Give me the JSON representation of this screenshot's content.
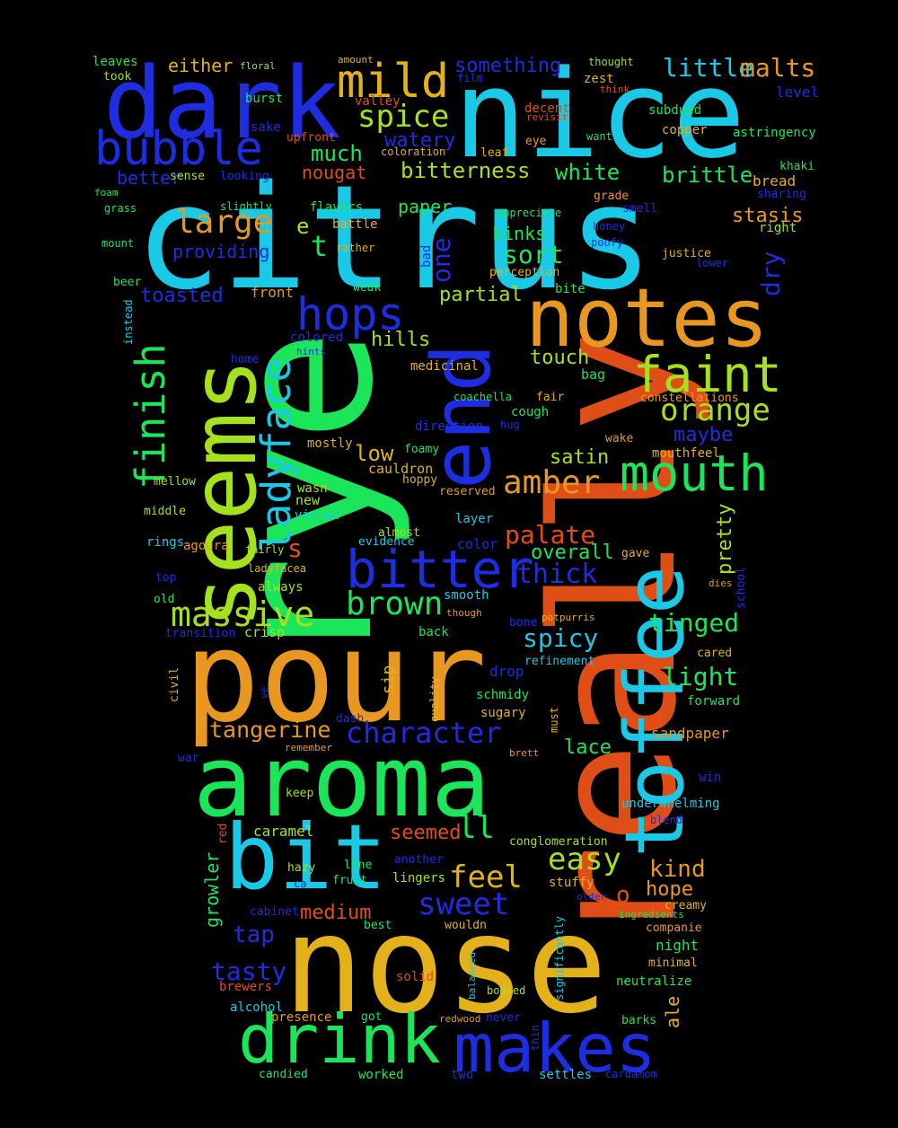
{
  "colors": {
    "background": "#000000",
    "blue": "#1e2de0",
    "cyan": "#19c9e6",
    "green": "#1be65a",
    "lime": "#a6e11f",
    "orange": "#e89821",
    "red": "#e04e17",
    "yellow": "#e3b21a"
  },
  "words": [
    {
      "t": "citrus"
    },
    {
      "t": "rye"
    },
    {
      "t": "really"
    },
    {
      "t": "nose"
    },
    {
      "t": "nice"
    },
    {
      "t": "pour"
    },
    {
      "t": "dark"
    },
    {
      "t": "aroma"
    },
    {
      "t": "notes"
    },
    {
      "t": "seems"
    },
    {
      "t": "end"
    },
    {
      "t": "toffee"
    },
    {
      "t": "bit"
    },
    {
      "t": "drink"
    },
    {
      "t": "makes"
    },
    {
      "t": "bubble"
    },
    {
      "t": "bitter"
    },
    {
      "t": "mild"
    },
    {
      "t": "hops"
    },
    {
      "t": "faint"
    },
    {
      "t": "mouth"
    },
    {
      "t": "ladyface"
    },
    {
      "t": "finish"
    },
    {
      "t": "massive"
    },
    {
      "t": "character"
    },
    {
      "t": "large"
    },
    {
      "t": "orange"
    },
    {
      "t": "brown"
    },
    {
      "t": "amber"
    },
    {
      "t": "sweet"
    },
    {
      "t": "feel"
    },
    {
      "t": "easy"
    },
    {
      "t": "spice"
    },
    {
      "t": "tangerine"
    },
    {
      "t": "thick"
    },
    {
      "t": "ll"
    },
    {
      "t": "one"
    },
    {
      "t": "tasty"
    },
    {
      "t": "tinged"
    },
    {
      "t": "light"
    },
    {
      "t": "spicy"
    },
    {
      "t": "palate"
    },
    {
      "t": "sort"
    },
    {
      "t": "little"
    },
    {
      "t": "malts"
    },
    {
      "t": "something"
    },
    {
      "t": "bitterness"
    },
    {
      "t": "white"
    },
    {
      "t": "much"
    },
    {
      "t": "watery"
    },
    {
      "t": "brittle"
    },
    {
      "t": "toasted"
    },
    {
      "t": "providing"
    },
    {
      "t": "kinks"
    },
    {
      "t": "partial"
    },
    {
      "t": "touch"
    },
    {
      "t": "low"
    },
    {
      "t": "hills"
    },
    {
      "t": "dry"
    },
    {
      "t": "stasis"
    },
    {
      "t": "kind"
    },
    {
      "t": "hope"
    },
    {
      "t": "tap"
    },
    {
      "t": "medium"
    },
    {
      "t": "seemed"
    },
    {
      "t": "overall"
    },
    {
      "t": "pretty"
    },
    {
      "t": "satin"
    },
    {
      "t": "maybe"
    },
    {
      "t": "either"
    },
    {
      "t": "better"
    },
    {
      "t": "paper"
    },
    {
      "t": "nougat"
    },
    {
      "t": "lace"
    },
    {
      "t": "t"
    },
    {
      "t": "s"
    },
    {
      "t": "o"
    },
    {
      "t": "growler"
    },
    {
      "t": "ale"
    },
    {
      "t": "front"
    },
    {
      "t": "sip"
    },
    {
      "t": "bread"
    },
    {
      "t": "caramel"
    },
    {
      "t": "drop"
    },
    {
      "t": "sandpaper"
    },
    {
      "t": "level"
    },
    {
      "t": "subdued"
    },
    {
      "t": "astringency"
    },
    {
      "t": "copper"
    },
    {
      "t": "khaki"
    },
    {
      "t": "sharing"
    },
    {
      "t": "right"
    },
    {
      "t": "justice"
    },
    {
      "t": "lower"
    },
    {
      "t": "smell"
    },
    {
      "t": "honey"
    },
    {
      "t": "poofy"
    },
    {
      "t": "grade"
    },
    {
      "t": "appreciate"
    },
    {
      "t": "leaf"
    },
    {
      "t": "eye"
    },
    {
      "t": "want"
    },
    {
      "t": "zest"
    },
    {
      "t": "think"
    },
    {
      "t": "thought"
    },
    {
      "t": "film"
    },
    {
      "t": "amount"
    },
    {
      "t": "valley"
    },
    {
      "t": "decent"
    },
    {
      "t": "revisit"
    },
    {
      "t": "coloration"
    },
    {
      "t": "upfront"
    },
    {
      "t": "burst"
    },
    {
      "t": "took"
    },
    {
      "t": "leaves"
    },
    {
      "t": "floral"
    },
    {
      "t": "sake"
    },
    {
      "t": "sense"
    },
    {
      "t": "looking"
    },
    {
      "t": "foam"
    },
    {
      "t": "grass"
    },
    {
      "t": "slightly"
    },
    {
      "t": "flavors"
    },
    {
      "t": "battle"
    },
    {
      "t": "mount"
    },
    {
      "t": "rather"
    },
    {
      "t": "bad"
    },
    {
      "t": "beer"
    },
    {
      "t": "weak"
    },
    {
      "t": "perception"
    },
    {
      "t": "bite"
    },
    {
      "t": "instead"
    },
    {
      "t": "colored"
    },
    {
      "t": "hints"
    },
    {
      "t": "home"
    },
    {
      "t": "medicinal"
    },
    {
      "t": "bag"
    },
    {
      "t": "coachella"
    },
    {
      "t": "fair"
    },
    {
      "t": "cough"
    },
    {
      "t": "hug"
    },
    {
      "t": "constellations"
    },
    {
      "t": "wake"
    },
    {
      "t": "mouthfeel"
    },
    {
      "t": "direction"
    },
    {
      "t": "foamy"
    },
    {
      "t": "mostly"
    },
    {
      "t": "cauldron"
    },
    {
      "t": "hoppy"
    },
    {
      "t": "reserved"
    },
    {
      "t": "mellow"
    },
    {
      "t": "wasn"
    },
    {
      "t": "new"
    },
    {
      "t": "visual"
    },
    {
      "t": "middle"
    },
    {
      "t": "layer"
    },
    {
      "t": "almost"
    },
    {
      "t": "evidence"
    },
    {
      "t": "color"
    },
    {
      "t": "rings"
    },
    {
      "t": "agoura"
    },
    {
      "t": "fairly"
    },
    {
      "t": "ladyfacea"
    },
    {
      "t": "gave"
    },
    {
      "t": "top"
    },
    {
      "t": "always"
    },
    {
      "t": "smooth"
    },
    {
      "t": "though"
    },
    {
      "t": "school"
    },
    {
      "t": "dies"
    },
    {
      "t": "old"
    },
    {
      "t": "transition"
    },
    {
      "t": "crisp"
    },
    {
      "t": "back"
    },
    {
      "t": "bone"
    },
    {
      "t": "potpurris"
    },
    {
      "t": "cared"
    },
    {
      "t": "refinement"
    },
    {
      "t": "civil"
    },
    {
      "t": "ve"
    },
    {
      "t": "quality"
    },
    {
      "t": "schmidy"
    },
    {
      "t": "sugary"
    },
    {
      "t": "must"
    },
    {
      "t": "forward"
    },
    {
      "t": "dash"
    },
    {
      "t": "remember"
    },
    {
      "t": "war"
    },
    {
      "t": "brett"
    },
    {
      "t": "win"
    },
    {
      "t": "keep"
    },
    {
      "t": "underwhelming"
    },
    {
      "t": "blend"
    },
    {
      "t": "red"
    },
    {
      "t": "conglomeration"
    },
    {
      "t": "another"
    },
    {
      "t": "line"
    },
    {
      "t": "lingers"
    },
    {
      "t": "hazy"
    },
    {
      "t": "ca"
    },
    {
      "t": "fruit"
    },
    {
      "t": "stuffy"
    },
    {
      "t": "older"
    },
    {
      "t": "ingredients"
    },
    {
      "t": "creamy"
    },
    {
      "t": "cabinet"
    },
    {
      "t": "best"
    },
    {
      "t": "wouldn"
    },
    {
      "t": "companie"
    },
    {
      "t": "night"
    },
    {
      "t": "minimal"
    },
    {
      "t": "significantly"
    },
    {
      "t": "neutralize"
    },
    {
      "t": "balanced"
    },
    {
      "t": "bodied"
    },
    {
      "t": "solid"
    },
    {
      "t": "brewers"
    },
    {
      "t": "alcohol"
    },
    {
      "t": "presence"
    },
    {
      "t": "got"
    },
    {
      "t": "redwood"
    },
    {
      "t": "never"
    },
    {
      "t": "barks"
    },
    {
      "t": "thin"
    },
    {
      "t": "candied"
    },
    {
      "t": "worked"
    },
    {
      "t": "two"
    },
    {
      "t": "settles"
    },
    {
      "t": "cardamom"
    },
    {
      "t": "e"
    }
  ]
}
